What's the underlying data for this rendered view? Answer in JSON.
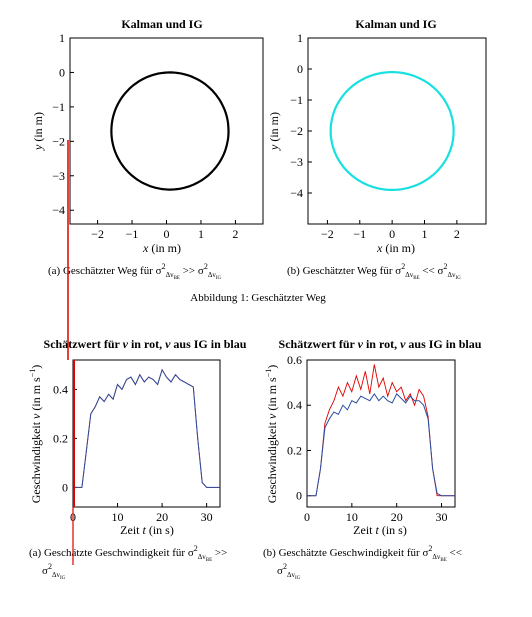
{
  "figure1": {
    "caption": "Abbildung 1: Geschätzter Weg",
    "panel_a": {
      "title": "Kalman und IG",
      "caption": "(a) Geschätzter Weg für σ²_{Δv_BE} >> σ²_{Δv_IG}",
      "color": "#000000"
    },
    "panel_b": {
      "title": "Kalman und IG",
      "caption": "(b) Geschätzter Weg für σ²_{Δv_BE} << σ²_{Δv_IG}",
      "color": "#19e0e0"
    }
  },
  "figure2": {
    "panel_a": {
      "title": "Schätzwert für v in rot, v aus IG in blau",
      "caption": "(a) Geschätzte Geschwindigkeit für σ²_{Δv_BE} >> σ²_{Δv_IG}"
    },
    "panel_b": {
      "title": "Schätzwert für v in rot, v aus IG in blau",
      "caption": "(b) Geschätzte Geschwindigkeit für σ²_{Δv_BE} << σ²_{Δv_IG}"
    }
  },
  "chart_data": [
    {
      "type": "line",
      "title": "Kalman und IG",
      "xlabel": "x (in m)",
      "ylabel": "y (in m)",
      "xlim": [
        -2.8,
        2.8
      ],
      "ylim": [
        -4.4,
        1.0
      ],
      "xticks": [
        -2,
        -1,
        0,
        1,
        2
      ],
      "yticks": [
        1,
        0,
        -1,
        -2,
        -3,
        -4
      ],
      "series": [
        {
          "color": "#000000",
          "center": [
            0.1,
            -1.7
          ],
          "radius": 1.7,
          "start_point": [
            -0.9,
            -0.3
          ],
          "end_point": [
            -0.2,
            -0.3
          ]
        }
      ]
    },
    {
      "type": "line",
      "title": "Kalman und IG",
      "xlabel": "x (in m)",
      "ylabel": "y (in m)",
      "xlim": [
        -2.6,
        2.9
      ],
      "ylim": [
        -5.0,
        1.0
      ],
      "xticks": [
        -2,
        -1,
        0,
        1,
        2
      ],
      "yticks": [
        1,
        0,
        -1,
        -2,
        -3,
        -4
      ],
      "series": [
        {
          "color": "#19e0e0",
          "center": [
            0.0,
            -2.0
          ],
          "radius": 1.9,
          "start_point": [
            -0.8,
            -0.7
          ],
          "end_point": [
            0.0,
            0.0
          ]
        }
      ]
    },
    {
      "type": "line",
      "title": "Schätzwert für v in rot, v aus IG in blau",
      "xlabel": "Zeit t (in s)",
      "ylabel": "Geschwindigkeit v (in m s⁻¹)",
      "xlim": [
        0,
        33
      ],
      "ylim": [
        -0.08,
        0.52
      ],
      "xticks": [
        0,
        10,
        20,
        30
      ],
      "yticks": [
        0,
        0.2,
        0.4
      ],
      "series": [
        {
          "name": "v",
          "color": "#d00000",
          "x": [
            0,
            2,
            3,
            4,
            5,
            6,
            7,
            8,
            9,
            10,
            11,
            12,
            13,
            14,
            15,
            16,
            17,
            18,
            19,
            20,
            21,
            22,
            23,
            24,
            25,
            26,
            27,
            28,
            29,
            30,
            31,
            32,
            33
          ],
          "y": [
            0,
            0,
            0.15,
            0.3,
            0.33,
            0.37,
            0.35,
            0.38,
            0.36,
            0.42,
            0.4,
            0.44,
            0.45,
            0.42,
            0.46,
            0.43,
            0.45,
            0.44,
            0.42,
            0.48,
            0.45,
            0.43,
            0.46,
            0.44,
            0.43,
            0.42,
            0.41,
            0.2,
            0.02,
            0,
            0,
            0,
            0
          ]
        },
        {
          "name": "v aus IG",
          "color": "#2a4fa0",
          "x": [
            0,
            2,
            3,
            4,
            5,
            6,
            7,
            8,
            9,
            10,
            11,
            12,
            13,
            14,
            15,
            16,
            17,
            18,
            19,
            20,
            21,
            22,
            23,
            24,
            25,
            26,
            27,
            28,
            29,
            30,
            31,
            32,
            33
          ],
          "y": [
            0,
            0,
            0.15,
            0.3,
            0.33,
            0.37,
            0.35,
            0.38,
            0.36,
            0.42,
            0.4,
            0.44,
            0.45,
            0.42,
            0.46,
            0.43,
            0.45,
            0.44,
            0.42,
            0.48,
            0.45,
            0.43,
            0.46,
            0.44,
            0.43,
            0.42,
            0.41,
            0.2,
            0.02,
            0,
            0,
            0,
            0
          ]
        }
      ]
    },
    {
      "type": "line",
      "title": "Schätzwert für v in rot, v aus IG in blau",
      "xlabel": "Zeit t (in s)",
      "ylabel": "Geschwindigkeit v (in m s⁻¹)",
      "xlim": [
        0,
        33
      ],
      "ylim": [
        -0.05,
        0.6
      ],
      "xticks": [
        0,
        10,
        20,
        30
      ],
      "yticks": [
        0,
        0.2,
        0.4,
        0.6
      ],
      "series": [
        {
          "name": "v",
          "color": "#e00000",
          "x": [
            0,
            2,
            3,
            4,
            5,
            6,
            7,
            8,
            9,
            10,
            11,
            12,
            13,
            14,
            15,
            16,
            17,
            18,
            19,
            20,
            21,
            22,
            23,
            24,
            25,
            26,
            27,
            28,
            29,
            30,
            31,
            32,
            33
          ],
          "y": [
            0,
            0,
            0.12,
            0.32,
            0.38,
            0.42,
            0.48,
            0.44,
            0.5,
            0.46,
            0.53,
            0.47,
            0.55,
            0.45,
            0.58,
            0.48,
            0.52,
            0.44,
            0.5,
            0.46,
            0.48,
            0.42,
            0.45,
            0.4,
            0.47,
            0.44,
            0.35,
            0.12,
            0.0,
            0,
            0,
            0,
            0
          ]
        },
        {
          "name": "v aus IG",
          "color": "#2a4fa0",
          "x": [
            0,
            2,
            3,
            4,
            5,
            6,
            7,
            8,
            9,
            10,
            11,
            12,
            13,
            14,
            15,
            16,
            17,
            18,
            19,
            20,
            21,
            22,
            23,
            24,
            25,
            26,
            27,
            28,
            29,
            30,
            31,
            32,
            33
          ],
          "y": [
            0,
            0,
            0.12,
            0.3,
            0.34,
            0.37,
            0.36,
            0.4,
            0.38,
            0.42,
            0.41,
            0.44,
            0.43,
            0.42,
            0.45,
            0.42,
            0.44,
            0.42,
            0.41,
            0.45,
            0.43,
            0.41,
            0.44,
            0.42,
            0.42,
            0.4,
            0.34,
            0.12,
            0.01,
            0,
            0,
            0,
            0
          ]
        }
      ]
    }
  ]
}
